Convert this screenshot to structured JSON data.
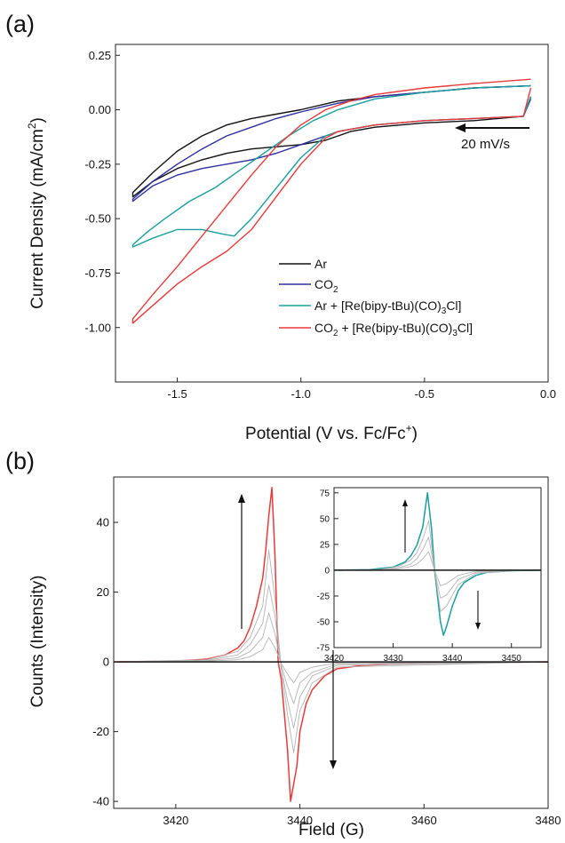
{
  "chart_data": [
    {
      "panel_label": "(a)",
      "type": "line",
      "xlabel": "Potential (V vs. Fc/Fc",
      "xlabel_sup": "+",
      "xlabel_close": ")",
      "ylabel": "Current Density (mA/cm",
      "ylabel_sup": "2",
      "ylabel_close": ")",
      "xlim": [
        -1.75,
        0.0
      ],
      "ylim": [
        -1.25,
        0.3
      ],
      "xticks": [
        -1.5,
        -1.0,
        -0.5,
        0.0
      ],
      "xtick_labels": [
        "-1.5",
        "-1.0",
        "-0.5",
        "0.0"
      ],
      "yticks": [
        0.25,
        0.0,
        -0.25,
        -0.5,
        -0.75,
        -1.0
      ],
      "ytick_labels": [
        "0.25",
        "0.00",
        "-0.25",
        "-0.50",
        "-0.75",
        "-1.00"
      ],
      "grid": false,
      "legend_position": "bottom-right",
      "annotation": "20 mV/s",
      "legend": [
        {
          "text": "Ar",
          "sub": "",
          "rest": ""
        },
        {
          "text": "CO",
          "sub": "2",
          "rest": ""
        },
        {
          "text": "Ar + [Re(bipy-tBu)(CO)",
          "sub": "3",
          "rest": "Cl]"
        },
        {
          "text": "CO",
          "sub": "2",
          "rest": " + [Re(bipy-tBu)(CO)",
          "sub2": "3",
          "rest2": "Cl]"
        }
      ],
      "series": [
        {
          "color": "#111111",
          "x": [
            -0.07,
            -0.3,
            -0.5,
            -0.7,
            -0.85,
            -1.0,
            -1.1,
            -1.2,
            -1.3,
            -1.4,
            -1.5,
            -1.6,
            -1.68,
            -1.68,
            -1.6,
            -1.5,
            -1.4,
            -1.3,
            -1.2,
            -1.1,
            -1.0,
            -0.9,
            -0.85,
            -0.8,
            -0.7,
            -0.5,
            -0.3,
            -0.1,
            -0.07
          ],
          "y": [
            0.11,
            0.1,
            0.08,
            0.06,
            0.04,
            0.0,
            -0.02,
            -0.04,
            -0.07,
            -0.12,
            -0.19,
            -0.29,
            -0.38,
            -0.4,
            -0.33,
            -0.27,
            -0.23,
            -0.2,
            -0.18,
            -0.17,
            -0.16,
            -0.14,
            -0.12,
            -0.1,
            -0.08,
            -0.06,
            -0.05,
            -0.03,
            0.06
          ]
        },
        {
          "color": "#2e2e9e",
          "x": [
            -0.07,
            -0.3,
            -0.5,
            -0.7,
            -0.85,
            -1.0,
            -1.1,
            -1.2,
            -1.3,
            -1.4,
            -1.5,
            -1.6,
            -1.68,
            -1.68,
            -1.6,
            -1.5,
            -1.4,
            -1.3,
            -1.2,
            -1.1,
            -1.0,
            -0.9,
            -0.85,
            -0.8,
            -0.7,
            -0.5,
            -0.3,
            -0.1,
            -0.07
          ],
          "y": [
            0.11,
            0.1,
            0.08,
            0.06,
            0.03,
            -0.01,
            -0.04,
            -0.08,
            -0.12,
            -0.18,
            -0.25,
            -0.33,
            -0.41,
            -0.42,
            -0.35,
            -0.3,
            -0.27,
            -0.25,
            -0.23,
            -0.2,
            -0.16,
            -0.12,
            -0.1,
            -0.09,
            -0.07,
            -0.05,
            -0.04,
            -0.03,
            0.05
          ]
        },
        {
          "color": "#1a9e9e",
          "x": [
            -0.07,
            -0.3,
            -0.5,
            -0.7,
            -0.85,
            -0.95,
            -1.05,
            -1.15,
            -1.25,
            -1.35,
            -1.45,
            -1.55,
            -1.62,
            -1.68,
            -1.68,
            -1.6,
            -1.5,
            -1.4,
            -1.32,
            -1.27,
            -1.2,
            -1.1,
            -1.0,
            -0.9,
            -0.85,
            -0.8,
            -0.7,
            -0.5,
            -0.3,
            -0.1,
            -0.07
          ],
          "y": [
            0.11,
            0.1,
            0.08,
            0.05,
            0.0,
            -0.05,
            -0.12,
            -0.2,
            -0.28,
            -0.36,
            -0.42,
            -0.5,
            -0.56,
            -0.62,
            -0.63,
            -0.59,
            -0.55,
            -0.55,
            -0.57,
            -0.58,
            -0.5,
            -0.36,
            -0.22,
            -0.12,
            -0.1,
            -0.09,
            -0.07,
            -0.05,
            -0.04,
            -0.03,
            0.06
          ]
        },
        {
          "color": "#e83a3a",
          "x": [
            -0.07,
            -0.3,
            -0.5,
            -0.7,
            -0.8,
            -0.9,
            -1.0,
            -1.1,
            -1.2,
            -1.3,
            -1.4,
            -1.5,
            -1.6,
            -1.68,
            -1.68,
            -1.6,
            -1.5,
            -1.4,
            -1.3,
            -1.2,
            -1.1,
            -1.0,
            -0.9,
            -0.85,
            -0.8,
            -0.7,
            -0.5,
            -0.3,
            -0.1,
            -0.07
          ],
          "y": [
            0.14,
            0.12,
            0.1,
            0.07,
            0.04,
            0.0,
            -0.07,
            -0.17,
            -0.3,
            -0.44,
            -0.58,
            -0.72,
            -0.85,
            -0.96,
            -0.98,
            -0.9,
            -0.8,
            -0.72,
            -0.65,
            -0.55,
            -0.4,
            -0.25,
            -0.13,
            -0.1,
            -0.09,
            -0.07,
            -0.05,
            -0.04,
            -0.03,
            0.1
          ]
        }
      ]
    },
    {
      "panel_label": "(b)",
      "type": "line",
      "xlabel": "Field (G)",
      "ylabel": "Counts (Intensity)",
      "xlim": [
        3410,
        3480
      ],
      "ylim": [
        -42,
        53
      ],
      "xticks": [
        3420,
        3440,
        3460,
        3480
      ],
      "xtick_labels": [
        "3420",
        "3440",
        "3460",
        "3480"
      ],
      "yticks": [
        40,
        20,
        0,
        -20,
        -40
      ],
      "ytick_labels": [
        "40",
        "20",
        "0",
        "-20",
        "-40"
      ],
      "grid": false,
      "series": [
        {
          "color": "#e83a3a",
          "role": "final",
          "x": [
            3410,
            3420,
            3425,
            3428,
            3430,
            3431,
            3432,
            3433,
            3434,
            3434.5,
            3435,
            3435.5,
            3436,
            3436.5,
            3437,
            3437.5,
            3438,
            3438.5,
            3439,
            3439.5,
            3440,
            3441,
            3442,
            3444,
            3446,
            3450,
            3460,
            3480
          ],
          "y": [
            0,
            0.2,
            0.8,
            2,
            4,
            6,
            10,
            16,
            24,
            32,
            42,
            50,
            30,
            0,
            -5,
            -15,
            -25,
            -40,
            -35,
            -30,
            -20,
            -12,
            -8,
            -4,
            -2,
            -1,
            -0.3,
            0
          ]
        },
        {
          "color": "#b4b4b4",
          "role": "intermediate",
          "x": [
            3410,
            3425,
            3430,
            3432,
            3434,
            3435,
            3436,
            3437,
            3438,
            3439,
            3440,
            3442,
            3446,
            3480
          ],
          "y": [
            0,
            0.6,
            3,
            7,
            16,
            32,
            18,
            -2,
            -15,
            -26,
            -14,
            -6,
            -1.5,
            0
          ]
        },
        {
          "color": "#b4b4b4",
          "role": "intermediate",
          "x": [
            3410,
            3425,
            3430,
            3432,
            3434,
            3435,
            3436,
            3437,
            3438,
            3439,
            3440,
            3442,
            3446,
            3480
          ],
          "y": [
            0,
            0.4,
            2,
            5,
            11,
            22,
            13,
            -2,
            -11,
            -19,
            -10,
            -4,
            -1,
            0
          ]
        },
        {
          "color": "#b4b4b4",
          "role": "intermediate",
          "x": [
            3410,
            3425,
            3430,
            3432,
            3434,
            3435,
            3436,
            3437,
            3438,
            3439,
            3440,
            3442,
            3446,
            3480
          ],
          "y": [
            0,
            0.3,
            1.2,
            3,
            7,
            14,
            8,
            -1,
            -7,
            -12,
            -6,
            -3,
            -0.6,
            0
          ]
        },
        {
          "color": "#b4b4b4",
          "role": "intermediate",
          "x": [
            3410,
            3425,
            3430,
            3432,
            3434,
            3435,
            3436,
            3437,
            3438,
            3439,
            3440,
            3442,
            3446,
            3480
          ],
          "y": [
            0,
            0.2,
            0.6,
            1.5,
            3.5,
            7,
            4,
            -0.5,
            -3.5,
            -6,
            -3,
            -1.5,
            -0.3,
            0
          ]
        },
        {
          "color": "#111111",
          "role": "initial",
          "x": [
            3410,
            3480
          ],
          "y": [
            0,
            0
          ]
        }
      ],
      "inset": {
        "type": "line",
        "xlim": [
          3420,
          3455
        ],
        "ylim": [
          -75,
          80
        ],
        "xticks": [
          3420,
          3430,
          3440,
          3450
        ],
        "xtick_labels": [
          "3420",
          "3430",
          "3440",
          "3450"
        ],
        "yticks": [
          75,
          50,
          25,
          0,
          -25,
          -50,
          -75
        ],
        "ytick_labels": [
          "75",
          "50",
          "25",
          "0",
          "-25",
          "-50",
          "-75"
        ],
        "series": [
          {
            "color": "#1a9e9e",
            "role": "final",
            "x": [
              3420,
              3426,
              3430,
              3432,
              3433,
              3434,
              3435,
              3435.8,
              3436.5,
              3437,
              3437.5,
              3438,
              3438.5,
              3439,
              3440,
              3441,
              3442,
              3444,
              3446,
              3450,
              3455
            ],
            "y": [
              0,
              0.5,
              3,
              8,
              14,
              24,
              42,
              75,
              40,
              0,
              -25,
              -50,
              -63,
              -55,
              -35,
              -20,
              -12,
              -5,
              -2,
              -0.5,
              0
            ]
          },
          {
            "color": "#b4b4b4",
            "role": "intermediate",
            "x": [
              3420,
              3428,
              3431,
              3433,
              3434,
              3435,
              3436,
              3437,
              3438,
              3439,
              3441,
              3444,
              3450,
              3455
            ],
            "y": [
              0,
              0.8,
              4,
              10,
              17,
              30,
              48,
              0,
              -40,
              -35,
              -14,
              -3,
              -0.5,
              0
            ]
          },
          {
            "color": "#b4b4b4",
            "role": "intermediate",
            "x": [
              3420,
              3428,
              3431,
              3433,
              3434,
              3435,
              3436,
              3437,
              3438,
              3439,
              3441,
              3444,
              3450,
              3455
            ],
            "y": [
              0,
              0.5,
              2.5,
              6,
              11,
              20,
              32,
              0,
              -27,
              -24,
              -9,
              -2,
              -0.3,
              0
            ]
          },
          {
            "color": "#b4b4b4",
            "role": "intermediate",
            "x": [
              3420,
              3428,
              3431,
              3433,
              3434,
              3435,
              3436,
              3437,
              3438,
              3439,
              3441,
              3444,
              3450,
              3455
            ],
            "y": [
              0,
              0.3,
              1.5,
              3.5,
              6,
              11,
              18,
              0,
              -15,
              -13,
              -5,
              -1,
              -0.2,
              0
            ]
          },
          {
            "color": "#111111",
            "role": "initial",
            "x": [
              3420,
              3455
            ],
            "y": [
              0,
              0
            ]
          }
        ]
      }
    }
  ]
}
